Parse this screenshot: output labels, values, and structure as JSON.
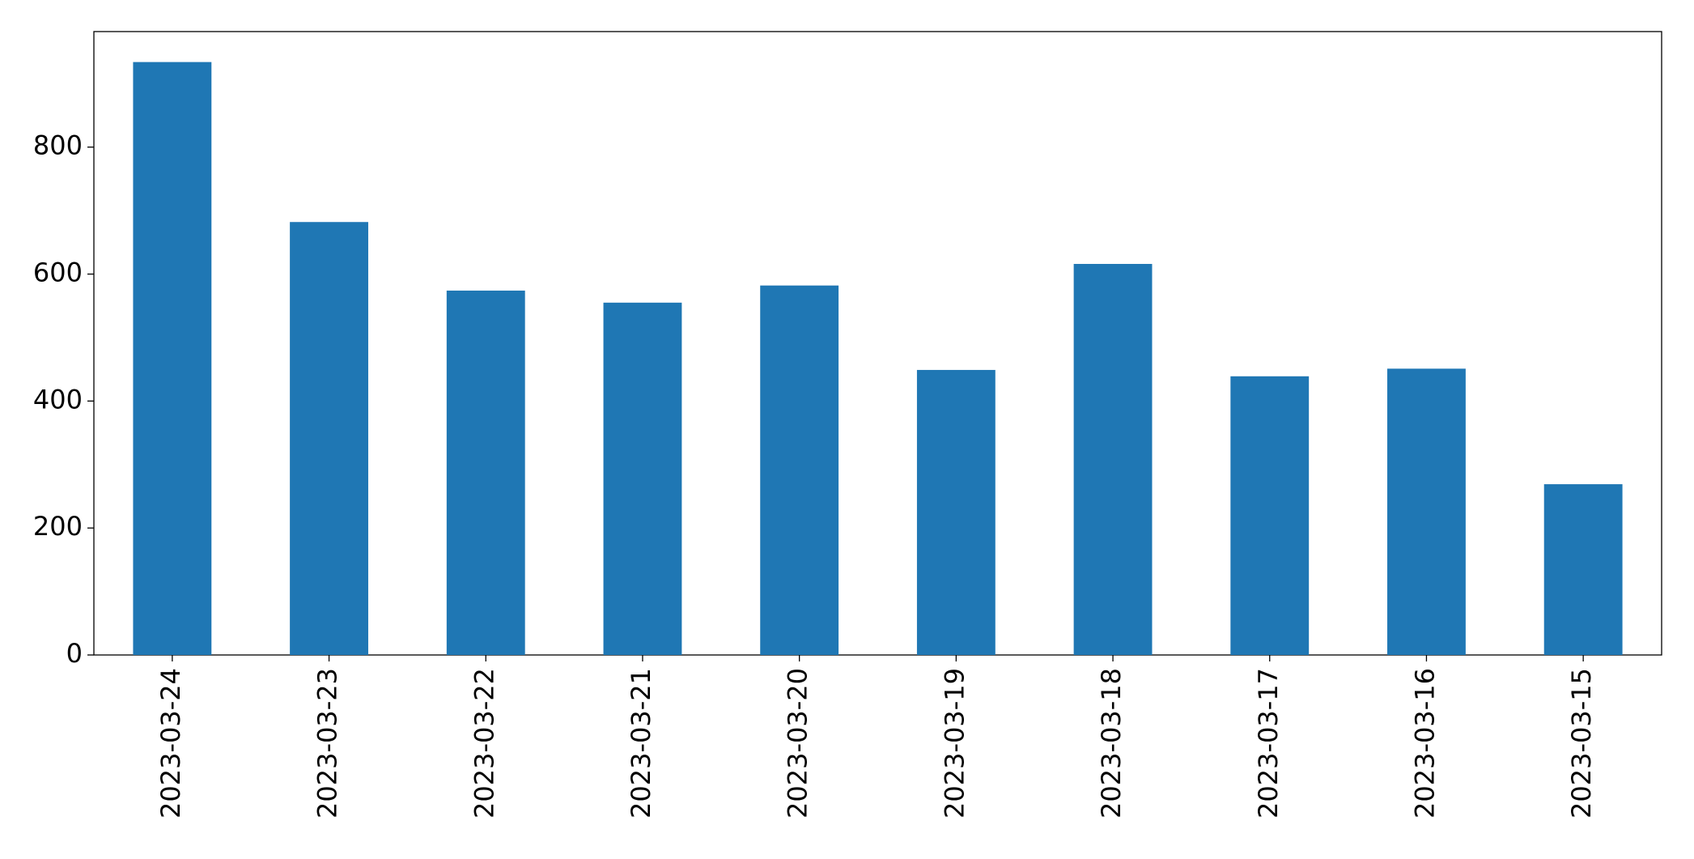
{
  "chart_data": {
    "type": "bar",
    "categories": [
      "2023-03-24",
      "2023-03-23",
      "2023-03-22",
      "2023-03-21",
      "2023-03-20",
      "2023-03-19",
      "2023-03-18",
      "2023-03-17",
      "2023-03-16",
      "2023-03-15"
    ],
    "values": [
      934,
      682,
      574,
      555,
      582,
      449,
      616,
      439,
      451,
      269
    ],
    "color": "#1f77b4",
    "ylim": [
      0,
      982
    ],
    "yticks": [
      0,
      200,
      400,
      600,
      800
    ],
    "grid": false
  }
}
